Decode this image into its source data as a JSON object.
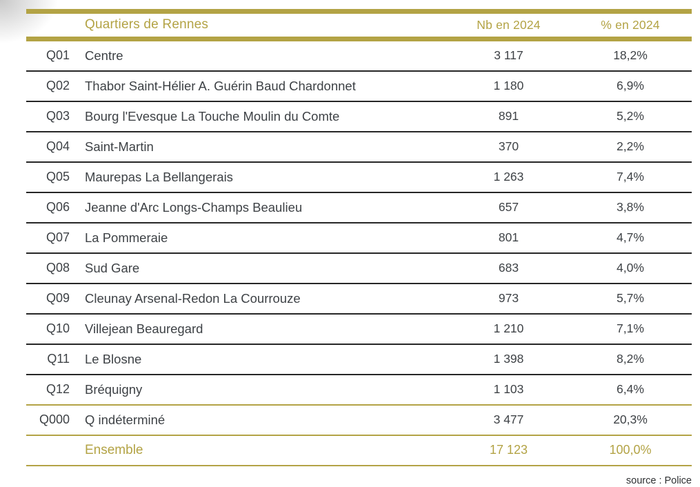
{
  "colors": {
    "accent": "#b3a345",
    "row_text": "#3e4246",
    "row_divider": "#262626"
  },
  "table": {
    "header": {
      "quarter_label": "Quartiers de Rennes",
      "nb_label": "Nb en 2024",
      "pct_label": "% en 2024"
    },
    "rows": [
      {
        "code": "Q01",
        "name": "Centre",
        "nb": "3 117",
        "pct": "18,2%"
      },
      {
        "code": "Q02",
        "name": "Thabor  Saint-Hélier A. Guérin Baud Chardonnet",
        "nb": "1 180",
        "pct": "6,9%"
      },
      {
        "code": "Q03",
        "name": "Bourg l'Evesque La Touche Moulin du Comte",
        "nb": "891",
        "pct": "5,2%"
      },
      {
        "code": "Q04",
        "name": "Saint-Martin",
        "nb": "370",
        "pct": "2,2%"
      },
      {
        "code": "Q05",
        "name": "Maurepas La Bellangerais",
        "nb": "1 263",
        "pct": "7,4%"
      },
      {
        "code": "Q06",
        "name": "Jeanne d'Arc Longs-Champs Beaulieu",
        "nb": "657",
        "pct": "3,8%"
      },
      {
        "code": "Q07",
        "name": "La Pommeraie",
        "nb": "801",
        "pct": "4,7%"
      },
      {
        "code": "Q08",
        "name": "Sud Gare",
        "nb": "683",
        "pct": "4,0%"
      },
      {
        "code": "Q09",
        "name": "Cleunay Arsenal-Redon La Courrouze",
        "nb": "973",
        "pct": "5,7%"
      },
      {
        "code": "Q10",
        "name": "Villejean Beauregard",
        "nb": "1 210",
        "pct": "7,1%"
      },
      {
        "code": "Q11",
        "name": "Le Blosne",
        "nb": "1 398",
        "pct": "8,2%"
      },
      {
        "code": "Q12",
        "name": "Bréquigny",
        "nb": "1 103",
        "pct": "6,4%"
      },
      {
        "code": "Q000",
        "name": "Q indéterminé",
        "nb": "3 477",
        "pct": "20,3%"
      }
    ],
    "total": {
      "name": "Ensemble",
      "nb": "17 123",
      "pct": "100,0%"
    }
  },
  "footer": {
    "source": "source : Police"
  }
}
